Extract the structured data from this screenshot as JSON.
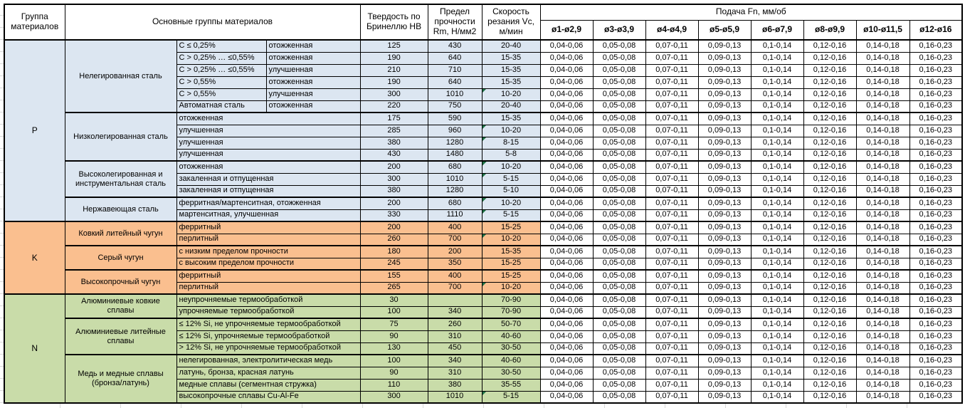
{
  "header": {
    "col_group": "Группа материалов",
    "col_main": "Основные группы материалов",
    "col_hb": "Твердость по Бринеллю HB",
    "col_rm": "Предел прочности Rm, Н/мм2",
    "col_vc": "Скорость резания Vc, м/мин",
    "feed_title": "Подача Fn, мм/об",
    "feed_cols": [
      "ø1-ø2,9",
      "ø3-ø3,9",
      "ø4-ø4,9",
      "ø5-ø5,9",
      "ø6-ø7,9",
      "ø8-ø9,9",
      "ø10-ø11,5",
      "ø12-ø16"
    ]
  },
  "feed_values": [
    "0,04-0,06",
    "0,05-0,08",
    "0,07-0,11",
    "0,09-0,13",
    "0,1-0,14",
    "0,12-0,16",
    "0,14-0,18",
    "0,16-0,23"
  ],
  "colors": {
    "group_p": "#DCE6F1",
    "group_k": "#FABF8F",
    "group_n": "#C9DCA9",
    "marker": "#1E7145"
  },
  "groups": [
    {
      "letter": "P",
      "color": "#DCE6F1",
      "subgroups": [
        {
          "name": "Нелегированная сталь",
          "rows": [
            {
              "desc": "C ≤ 0,25%",
              "state": "отожженная",
              "hb": "125",
              "rm": "430",
              "vc": "20-40",
              "marker": false
            },
            {
              "desc": "C > 0,25% … ≤0,55%",
              "state": "отожженная",
              "hb": "190",
              "rm": "640",
              "vc": "15-35",
              "marker": false
            },
            {
              "desc": "C > 0,25% … ≤0,55%",
              "state": "улучшенная",
              "hb": "210",
              "rm": "710",
              "vc": "15-35",
              "marker": false
            },
            {
              "desc": "C > 0,55%",
              "state": "отожженная",
              "hb": "190",
              "rm": "640",
              "vc": "15-35",
              "marker": false
            },
            {
              "desc": "C > 0,55%",
              "state": "улучшенная",
              "hb": "300",
              "rm": "1010",
              "vc": "10-20",
              "marker": true
            },
            {
              "desc": "Автоматная сталь",
              "state": "отожженная",
              "hb": "220",
              "rm": "750",
              "vc": "20-40",
              "marker": false
            }
          ]
        },
        {
          "name": "Низколегированная сталь",
          "rows": [
            {
              "desc": "отожженная",
              "hb": "175",
              "rm": "590",
              "vc": "15-35",
              "marker": false
            },
            {
              "desc": "улучшенная",
              "hb": "285",
              "rm": "960",
              "vc": "10-20",
              "marker": true
            },
            {
              "desc": "улучшенная",
              "hb": "380",
              "rm": "1280",
              "vc": "8-15",
              "marker": true
            },
            {
              "desc": "улучшенная",
              "hb": "430",
              "rm": "1480",
              "vc": "5-8",
              "marker": false
            }
          ]
        },
        {
          "name": "Высоколегированная и инструментальная сталь",
          "rows": [
            {
              "desc": "отожженная",
              "hb": "200",
              "rm": "680",
              "vc": "10-20",
              "marker": true
            },
            {
              "desc": "закаленная и отпущенная",
              "hb": "300",
              "rm": "1010",
              "vc": "5-15",
              "marker": true
            },
            {
              "desc": "закаленная и отпущенная",
              "hb": "380",
              "rm": "1280",
              "vc": "5-10",
              "marker": false
            }
          ]
        },
        {
          "name": "Нержавеющая сталь",
          "rows": [
            {
              "desc": "ферритная/мартенситная, отожженная",
              "hb": "200",
              "rm": "680",
              "vc": "10-20",
              "marker": true
            },
            {
              "desc": "мартенситная, улучшенная",
              "hb": "330",
              "rm": "1110",
              "vc": "5-15",
              "marker": true
            }
          ]
        }
      ]
    },
    {
      "letter": "K",
      "color": "#FABF8F",
      "subgroups": [
        {
          "name": "Ковкий литейный чугун",
          "rows": [
            {
              "desc": "ферритный",
              "hb": "200",
              "rm": "400",
              "vc": "15-25",
              "marker": false
            },
            {
              "desc": "перлитный",
              "hb": "260",
              "rm": "700",
              "vc": "10-20",
              "marker": true
            }
          ]
        },
        {
          "name": "Серый чугун",
          "rows": [
            {
              "desc": "с низким пределом прочности",
              "hb": "180",
              "rm": "200",
              "vc": "15-35",
              "marker": false
            },
            {
              "desc": "с высоким пределом прочности",
              "hb": "245",
              "rm": "350",
              "vc": "15-25",
              "marker": false
            }
          ]
        },
        {
          "name": "Высокопрочный чугун",
          "rows": [
            {
              "desc": "ферритный",
              "hb": "155",
              "rm": "400",
              "vc": "15-25",
              "marker": false
            },
            {
              "desc": "перлитный",
              "hb": "265",
              "rm": "700",
              "vc": "10-20",
              "marker": true
            }
          ]
        }
      ]
    },
    {
      "letter": "N",
      "color": "#C9DCA9",
      "subgroups": [
        {
          "name": "Алюминиевые ковкие сплавы",
          "rows": [
            {
              "desc": "неупрочняемые термообработкой",
              "hb": "30",
              "rm": "",
              "vc": "70-90",
              "marker": false
            },
            {
              "desc": "упрочняемые термообработкой",
              "hb": "100",
              "rm": "340",
              "vc": "70-90",
              "marker": false
            }
          ]
        },
        {
          "name": "Алюминиевые литейные сплавы",
          "rows": [
            {
              "desc": "≤ 12% Si, не упрочняемые термообработкой",
              "hb": "75",
              "rm": "260",
              "vc": "50-70",
              "marker": false
            },
            {
              "desc": "≤ 12% Si, упрочняемые термообработкой",
              "hb": "90",
              "rm": "310",
              "vc": "40-60",
              "marker": false
            },
            {
              "desc": "> 12% Si, не упрочняемые термообработкой",
              "hb": "130",
              "rm": "450",
              "vc": "30-50",
              "marker": false
            }
          ]
        },
        {
          "name": "Медь и медные сплавы (бронза/латунь)",
          "rows": [
            {
              "desc": "нелегированная, электролитическая медь",
              "hb": "100",
              "rm": "340",
              "vc": "40-60",
              "marker": false
            },
            {
              "desc": "латунь, бронза, красная латунь",
              "hb": "90",
              "rm": "310",
              "vc": "30-50",
              "marker": false
            },
            {
              "desc": "медные сплавы (сегментная стружка)",
              "hb": "110",
              "rm": "380",
              "vc": "35-55",
              "marker": false
            },
            {
              "desc": "высокопрочные сплавы Cu-Al-Fe",
              "hb": "300",
              "rm": "1010",
              "vc": "5-15",
              "marker": true
            }
          ]
        }
      ]
    }
  ]
}
